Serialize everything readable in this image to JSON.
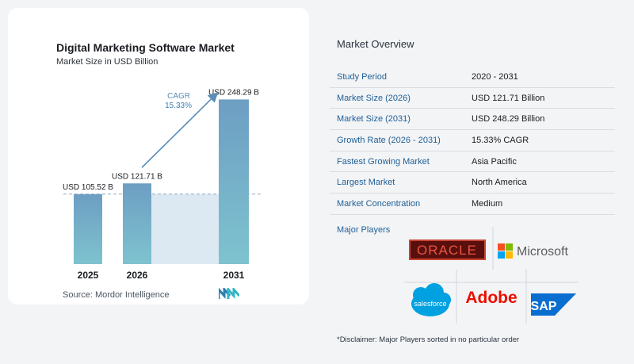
{
  "chart_data": {
    "type": "bar",
    "title": "Digital Marketing Software Market",
    "subtitle": "Market Size in USD Billion",
    "categories": [
      "2025",
      "2026",
      "2031"
    ],
    "values": [
      105.52,
      121.71,
      248.29
    ],
    "value_labels": [
      "USD 105.52 B",
      "USD 121.71 B",
      "USD 248.29 B"
    ],
    "cagr_label": "CAGR",
    "cagr_value": "15.33%",
    "ylim": [
      0,
      260
    ],
    "colors": {
      "bar_top": "#6d9ec3",
      "bar_bottom": "#7ec3cf",
      "arrow": "#5b8db8",
      "shade": "#dde9f2",
      "dash": "#8ea9bf"
    }
  },
  "source": "Source:  Mordor Intelligence",
  "overview": {
    "title": "Market Overview",
    "rows": [
      {
        "key": "Study Period",
        "value": "2020 - 2031"
      },
      {
        "key": "Market Size (2026)",
        "value": "USD 121.71 Billion"
      },
      {
        "key": "Market Size (2031)",
        "value": "USD 248.29 Billion"
      },
      {
        "key": "Growth Rate (2026 - 2031)",
        "value": "15.33% CAGR"
      },
      {
        "key": "Fastest Growing Market",
        "value": "Asia Pacific"
      },
      {
        "key": "Largest Market",
        "value": "North America"
      },
      {
        "key": "Market Concentration",
        "value": "Medium"
      }
    ]
  },
  "players": {
    "label": "Major Players",
    "logos": [
      "ORACLE",
      "Microsoft",
      "salesforce",
      "Adobe",
      "SAP"
    ]
  },
  "disclaimer": "*Disclaimer: Major Players sorted in no particular order"
}
